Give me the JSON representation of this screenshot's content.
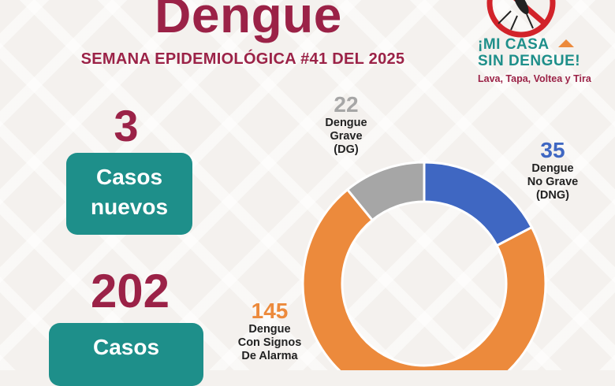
{
  "title": "Dengue",
  "subtitle": "SEMANA EPIDEMIOLÓGICA #41 DEL 2025",
  "left_panel": {
    "new_cases_value": "3",
    "new_cases_label_line1": "Casos",
    "new_cases_label_line2": "nuevos",
    "cumulative_value": "202",
    "cumulative_label_line1": "Casos"
  },
  "campaign": {
    "line1": "¡MI CASA",
    "line2": "SIN DENGUE!",
    "tagline": "Lava, Tapa, Voltea y Tira",
    "icon": "no-mosquito-icon"
  },
  "colors": {
    "brand": "#9b2247",
    "teal": "#1e8f8a",
    "dng": "#3f67c2",
    "dcsa": "#ec8a3c",
    "dg": "#a6a6a6"
  },
  "chart_data": {
    "type": "pie",
    "donut": true,
    "title": "",
    "slices": [
      {
        "value": 35,
        "label": "Dengue No Grave (DNG)",
        "label_lines": [
          "Dengue",
          "No Grave",
          "(DNG)"
        ],
        "color": "#3f67c2"
      },
      {
        "value": 145,
        "label": "Dengue Con Signos De Alarma",
        "label_lines": [
          "Dengue",
          "Con Signos",
          "De Alarma"
        ],
        "color": "#ec8a3c"
      },
      {
        "value": 22,
        "label": "Dengue Grave (DG)",
        "label_lines": [
          "Dengue",
          "Grave",
          "(DG)"
        ],
        "color": "#a6a6a6"
      }
    ]
  }
}
